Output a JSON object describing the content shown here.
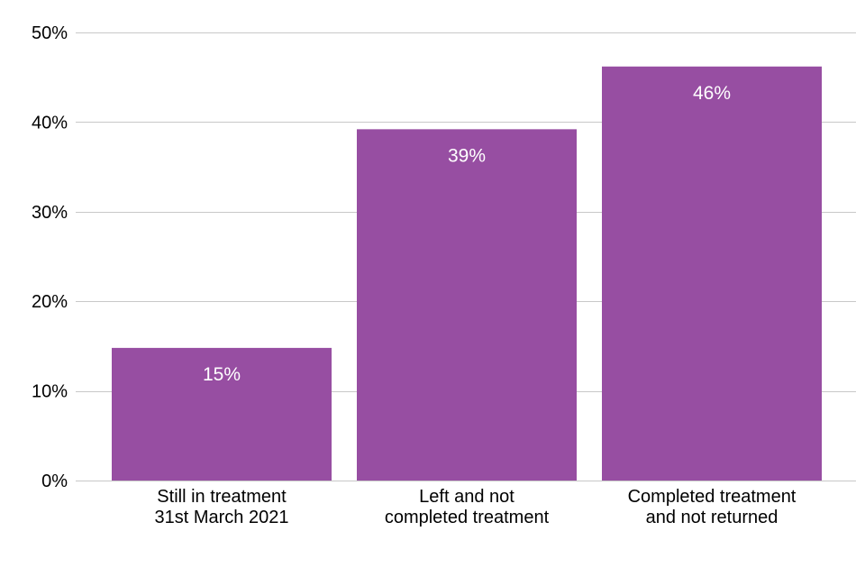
{
  "chart_data": {
    "type": "bar",
    "categories": [
      [
        "Still in treatment",
        "31st March 2021"
      ],
      [
        "Left and not",
        "completed treatment"
      ],
      [
        "Completed treatment",
        "and not returned"
      ]
    ],
    "values": [
      14.8,
      39.2,
      46.2
    ],
    "data_labels": [
      "15%",
      "39%",
      "46%"
    ],
    "ylim": [
      0,
      50
    ],
    "y_ticks": [
      0,
      10,
      20,
      30,
      40,
      50
    ],
    "y_tick_labels": [
      "0%",
      "10%",
      "20%",
      "30%",
      "40%",
      "50%"
    ],
    "grid": true,
    "legend": "none",
    "bar_color": "#974ea2"
  }
}
